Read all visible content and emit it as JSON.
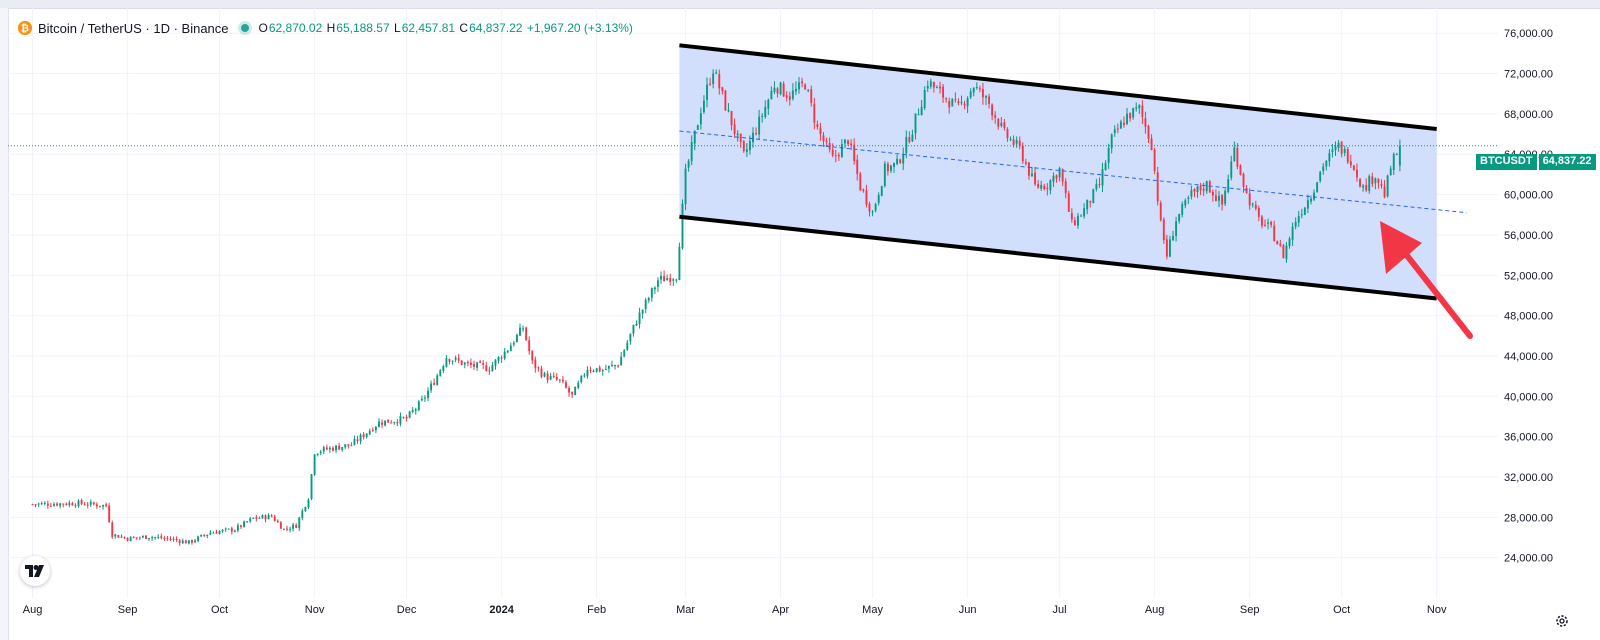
{
  "header": {
    "symbol_title": "Bitcoin / TetherUS · 1D · Binance",
    "open_label": "O",
    "open": "62,870.02",
    "high_label": "H",
    "high": "65,188.57",
    "low_label": "L",
    "low": "62,457.81",
    "close_label": "C",
    "close": "64,837.22",
    "change": "+1,967.20 (+3.13%)"
  },
  "last_price_tag": {
    "symbol": "BTCUSDT",
    "price": "64,837.22"
  },
  "colors": {
    "up": "#089981",
    "down": "#f23645",
    "channel_fill": "#c9d9fb",
    "channel_line": "#000000",
    "midline": "#2962ff",
    "arrow": "#f23645",
    "grid": "#f0f3fa"
  },
  "icons": {
    "coin": "bitcoin-coin-icon",
    "logo": "tradingview-logo-icon",
    "settings": "gear-icon"
  },
  "chart_data": {
    "type": "candlestick",
    "title": "Bitcoin / TetherUS · 1D · Binance",
    "x_ticks": [
      "Aug",
      "Sep",
      "Oct",
      "Nov",
      "Dec",
      "2024",
      "Feb",
      "Mar",
      "Apr",
      "May",
      "Jun",
      "Jul",
      "Aug",
      "Sep",
      "Oct",
      "Nov"
    ],
    "x_tick_days": [
      0,
      31,
      61,
      92,
      122,
      153,
      184,
      213,
      244,
      274,
      305,
      335,
      366,
      397,
      427,
      458
    ],
    "y_ticks": [
      "24,000.00",
      "28,000.00",
      "32,000.00",
      "36,000.00",
      "40,000.00",
      "44,000.00",
      "48,000.00",
      "52,000.00",
      "56,000.00",
      "60,000.00",
      "64,000.00",
      "68,000.00",
      "72,000.00",
      "76,000.00"
    ],
    "y_tick_values": [
      24000,
      28000,
      32000,
      36000,
      40000,
      44000,
      48000,
      52000,
      56000,
      60000,
      64000,
      68000,
      72000,
      76000
    ],
    "ylim": [
      20000,
      78500
    ],
    "xlim": [
      -8,
      478
    ],
    "close_anchors": [
      {
        "day": 0,
        "close": 29300
      },
      {
        "day": 8,
        "close": 29350
      },
      {
        "day": 15,
        "close": 29400
      },
      {
        "day": 24,
        "close": 29150
      },
      {
        "day": 26,
        "close": 26300
      },
      {
        "day": 31,
        "close": 25900
      },
      {
        "day": 38,
        "close": 26100
      },
      {
        "day": 46,
        "close": 25800
      },
      {
        "day": 51,
        "close": 25500
      },
      {
        "day": 58,
        "close": 26500
      },
      {
        "day": 66,
        "close": 26800
      },
      {
        "day": 72,
        "close": 27900
      },
      {
        "day": 78,
        "close": 28100
      },
      {
        "day": 82,
        "close": 26800
      },
      {
        "day": 86,
        "close": 27200
      },
      {
        "day": 90,
        "close": 30000
      },
      {
        "day": 92,
        "close": 34500
      },
      {
        "day": 95,
        "close": 34700
      },
      {
        "day": 104,
        "close": 35200
      },
      {
        "day": 113,
        "close": 37400
      },
      {
        "day": 122,
        "close": 37800
      },
      {
        "day": 127,
        "close": 39500
      },
      {
        "day": 131,
        "close": 41500
      },
      {
        "day": 135,
        "close": 43900
      },
      {
        "day": 142,
        "close": 43100
      },
      {
        "day": 149,
        "close": 42800
      },
      {
        "day": 155,
        "close": 44700
      },
      {
        "day": 160,
        "close": 46800
      },
      {
        "day": 163,
        "close": 43300
      },
      {
        "day": 167,
        "close": 42000
      },
      {
        "day": 172,
        "close": 41500
      },
      {
        "day": 176,
        "close": 40000
      },
      {
        "day": 181,
        "close": 42800
      },
      {
        "day": 186,
        "close": 42600
      },
      {
        "day": 191,
        "close": 43200
      },
      {
        "day": 197,
        "close": 47500
      },
      {
        "day": 204,
        "close": 51500
      },
      {
        "day": 210,
        "close": 52000
      },
      {
        "day": 213,
        "close": 62000
      },
      {
        "day": 218,
        "close": 68500
      },
      {
        "day": 222,
        "close": 72500
      },
      {
        "day": 226,
        "close": 68800
      },
      {
        "day": 232,
        "close": 63800
      },
      {
        "day": 237,
        "close": 67200
      },
      {
        "day": 242,
        "close": 70900
      },
      {
        "day": 247,
        "close": 69800
      },
      {
        "day": 252,
        "close": 71000
      },
      {
        "day": 256,
        "close": 66500
      },
      {
        "day": 261,
        "close": 63500
      },
      {
        "day": 266,
        "close": 65500
      },
      {
        "day": 270,
        "close": 60800
      },
      {
        "day": 274,
        "close": 58200
      },
      {
        "day": 278,
        "close": 62500
      },
      {
        "day": 282,
        "close": 63000
      },
      {
        "day": 287,
        "close": 66500
      },
      {
        "day": 292,
        "close": 71200
      },
      {
        "day": 297,
        "close": 69800
      },
      {
        "day": 302,
        "close": 68500
      },
      {
        "day": 307,
        "close": 70800
      },
      {
        "day": 312,
        "close": 69000
      },
      {
        "day": 317,
        "close": 66000
      },
      {
        "day": 322,
        "close": 64500
      },
      {
        "day": 327,
        "close": 60800
      },
      {
        "day": 331,
        "close": 61000
      },
      {
        "day": 335,
        "close": 62500
      },
      {
        "day": 339,
        "close": 57000
      },
      {
        "day": 343,
        "close": 58500
      },
      {
        "day": 348,
        "close": 61000
      },
      {
        "day": 352,
        "close": 65500
      },
      {
        "day": 357,
        "close": 67800
      },
      {
        "day": 361,
        "close": 68500
      },
      {
        "day": 365,
        "close": 65000
      },
      {
        "day": 368,
        "close": 57000
      },
      {
        "day": 370,
        "close": 54000
      },
      {
        "day": 373,
        "close": 57500
      },
      {
        "day": 378,
        "close": 60000
      },
      {
        "day": 383,
        "close": 61000
      },
      {
        "day": 388,
        "close": 59000
      },
      {
        "day": 392,
        "close": 64500
      },
      {
        "day": 396,
        "close": 60000
      },
      {
        "day": 400,
        "close": 57500
      },
      {
        "day": 404,
        "close": 56500
      },
      {
        "day": 408,
        "close": 54000
      },
      {
        "day": 412,
        "close": 57500
      },
      {
        "day": 417,
        "close": 60000
      },
      {
        "day": 421,
        "close": 63000
      },
      {
        "day": 426,
        "close": 64800
      },
      {
        "day": 430,
        "close": 63500
      },
      {
        "day": 434,
        "close": 60600
      },
      {
        "day": 438,
        "close": 62000
      },
      {
        "day": 441,
        "close": 60000
      },
      {
        "day": 443,
        "close": 62700
      },
      {
        "day": 446,
        "close": 64837
      }
    ],
    "channel": {
      "upper": {
        "start": {
          "day": 211,
          "price": 74800
        },
        "end": {
          "day": 458,
          "price": 66500
        }
      },
      "lower": {
        "start": {
          "day": 211,
          "price": 57800
        },
        "end": {
          "day": 458,
          "price": 49700
        }
      },
      "mid": {
        "start": {
          "day": 211,
          "price": 66300
        },
        "end": {
          "day": 458,
          "price": 58100
        }
      }
    },
    "last_close": 64837.22
  }
}
